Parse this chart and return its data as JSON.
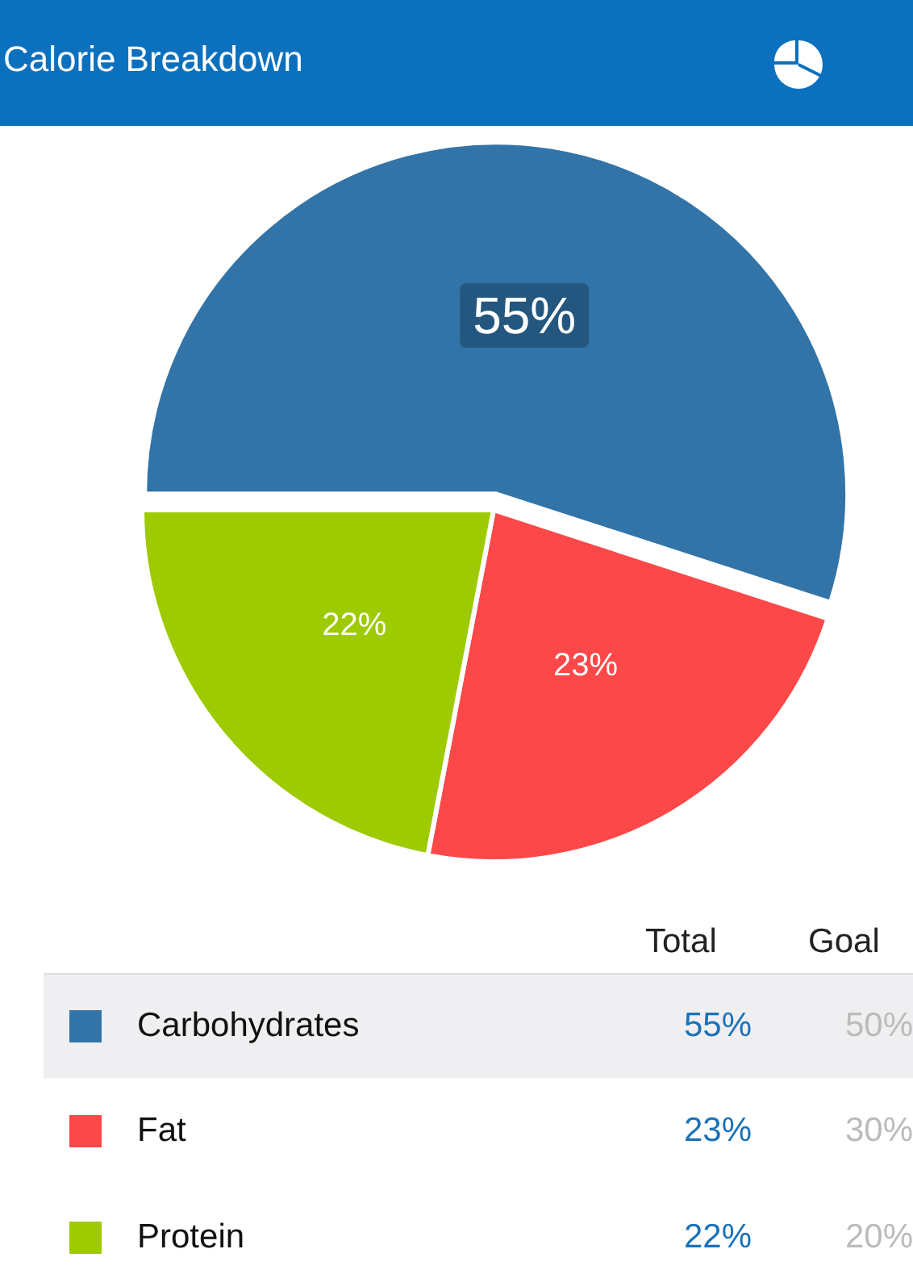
{
  "chart_data": {
    "type": "pie",
    "title": "Calorie Breakdown",
    "categories": [
      "Carbohydrates",
      "Fat",
      "Protein"
    ],
    "values": [
      55,
      23,
      22
    ],
    "colors": [
      "#3274a8",
      "#fc4848",
      "#9dca00"
    ],
    "value_labels": [
      "55%",
      "23%",
      "22%"
    ],
    "data_labels": true,
    "legend": "bottom",
    "annotations": [
      "Total",
      "Goal",
      "50%",
      "30%",
      "20%"
    ]
  }
}
